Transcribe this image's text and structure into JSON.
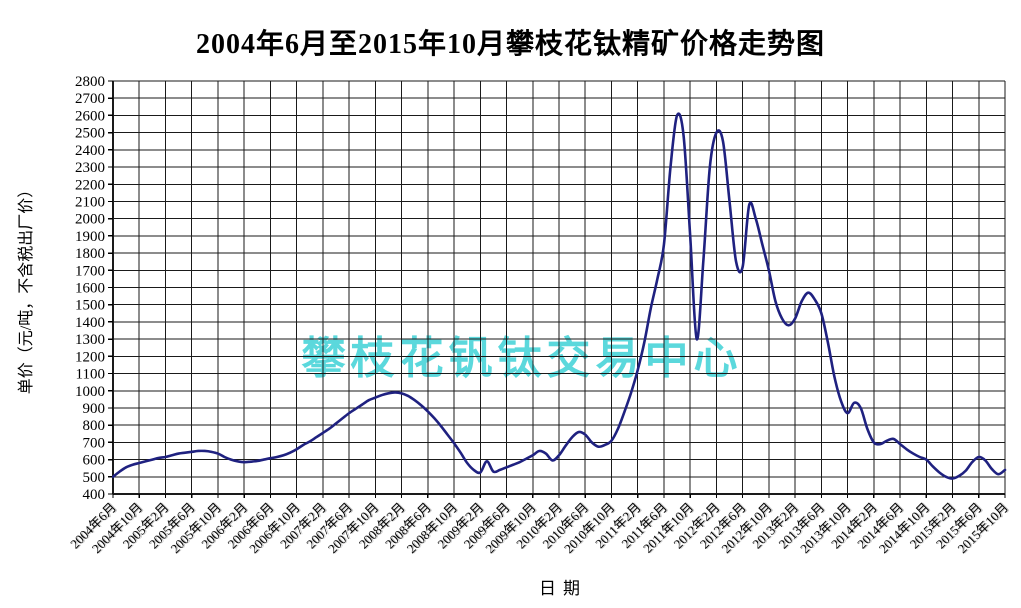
{
  "title": "2004年6月至2015年10月攀枝花钛精矿价格走势图",
  "watermark": "攀枝花钒钛交易中心",
  "chart_data": {
    "type": "line",
    "title": "2004年6月至2015年10月攀枝花钛精矿价格走势图",
    "xlabel": "日期",
    "ylabel": "单价（元/吨，不含税出厂价）",
    "ylim": [
      400,
      2800
    ],
    "ytick_step": 100,
    "grid": true,
    "legend": "none",
    "line_color": "#1f2180",
    "grid_color": "#1a1a1a",
    "watermark_color": "#5bd8dc",
    "x_tick_labels": [
      "2004年6月",
      "2004年10月",
      "2005年2月",
      "2005年6月",
      "2005年10月",
      "2006年2月",
      "2006年6月",
      "2006年10月",
      "2007年2月",
      "2007年6月",
      "2007年10月",
      "2008年2月",
      "2008年6月",
      "2008年10月",
      "2009年2月",
      "2009年6月",
      "2009年10月",
      "2010年2月",
      "2010年6月",
      "2010年10月",
      "2011年2月",
      "2011年6月",
      "2011年10月",
      "2012年2月",
      "2012年6月",
      "2012年10月",
      "2013年2月",
      "2013年6月",
      "2013年10月",
      "2014年2月",
      "2014年6月",
      "2014年10月",
      "2015年2月",
      "2015年6月",
      "2015年10月"
    ],
    "months_per_point": 1,
    "points_per_tick": 4,
    "series": [
      {
        "x_monthly_from": "2004年6月",
        "x_monthly_to": "2015年10月",
        "values": [
          500,
          530,
          555,
          570,
          580,
          590,
          600,
          610,
          615,
          625,
          635,
          640,
          645,
          650,
          650,
          645,
          635,
          615,
          600,
          590,
          585,
          588,
          592,
          600,
          608,
          615,
          625,
          640,
          660,
          685,
          705,
          730,
          755,
          780,
          810,
          840,
          870,
          895,
          920,
          945,
          960,
          975,
          985,
          990,
          985,
          970,
          945,
          915,
          880,
          840,
          795,
          745,
          695,
          640,
          580,
          540,
          525,
          590,
          530,
          540,
          555,
          570,
          585,
          605,
          625,
          650,
          635,
          595,
          625,
          680,
          730,
          760,
          745,
          700,
          675,
          685,
          710,
          780,
          880,
          990,
          1120,
          1280,
          1480,
          1650,
          1850,
          2300,
          2600,
          2480,
          1900,
          1300,
          1750,
          2300,
          2500,
          2450,
          2100,
          1750,
          1720,
          2080,
          2000,
          1850,
          1700,
          1520,
          1420,
          1380,
          1420,
          1520,
          1570,
          1530,
          1450,
          1280,
          1080,
          940,
          870,
          930,
          900,
          780,
          700,
          690,
          710,
          720,
          690,
          660,
          635,
          615,
          600,
          560,
          525,
          500,
          490,
          505,
          535,
          585,
          615,
          595,
          545,
          515,
          540
        ]
      }
    ]
  }
}
